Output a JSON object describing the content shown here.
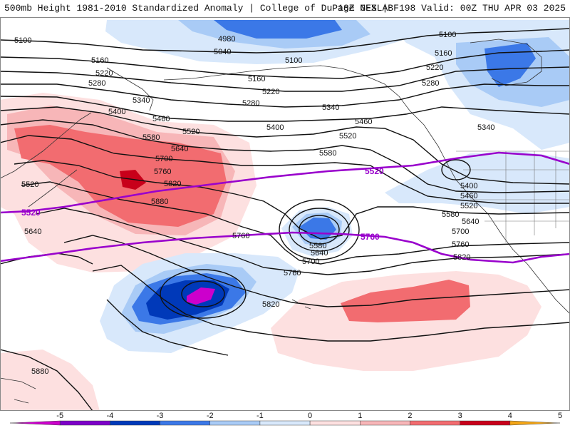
{
  "header": {
    "title": "500mb Height 1981-2010 Standardized Anomaly | College of DuPage NEXLAB",
    "run_info": "18Z GFS | F198 Valid: 00Z THU APR 03 2025"
  },
  "colors": {
    "anom_neg5": "#cc00cc",
    "anom_neg4": "#7d00c8",
    "anom_neg3": "#0039b9",
    "anom_neg2": "#3b78e7",
    "anom_neg1": "#a9cbf6",
    "anom_neg0": "#d8e8fb",
    "anom_pos0": "#fde0e0",
    "anom_pos1": "#f7b6b8",
    "anom_pos2": "#f26c70",
    "anom_pos3": "#c8001a",
    "anom_pos4": "#f3a516",
    "purple_line": "#9900cc",
    "contour": "#111111",
    "coast": "#333333"
  },
  "contour_labels": {
    "l5100a": "5100",
    "l5160a": "5160",
    "l5220a": "5220",
    "l5280a": "5280",
    "l5340a": "5340",
    "l5400a": "5400",
    "l5460a": "5460",
    "l5520a": "5520",
    "l5580a": "5580",
    "l5640a": "5640",
    "l5700a": "5700",
    "l5760a": "5760",
    "l5820a": "5820",
    "l5880a": "5880",
    "l4980": "4980",
    "l5040": "5040",
    "l5100b": "5100",
    "l5160b": "5160",
    "l5220b": "5220",
    "l5280b": "5280",
    "l5340b": "5340",
    "l5400b": "5400",
    "l5460b": "5460",
    "l5520b": "5520",
    "l5580b": "5580",
    "l5100c": "5100",
    "l5160c": "5160",
    "l5220c": "5220",
    "l5280c": "5280",
    "l5340c": "5340",
    "l5400c": "5400",
    "l5460c": "5460",
    "l5520c": "5520",
    "l5580c": "5580",
    "l5640c": "5640",
    "l5700c": "5700",
    "l5760c": "5760",
    "l5820c": "5820",
    "l5520w": "5520",
    "l5640w": "5640",
    "l5580low": "5580",
    "l5640low": "5640",
    "l5700low": "5700",
    "l5760low": "5760",
    "l5820s": "5820",
    "l5880sw": "5880"
  },
  "purple_labels": {
    "p5520w": "5520",
    "p5520e": "5520",
    "p5760": "5760"
  },
  "legend": {
    "ticks": [
      "-5",
      "-4",
      "-3",
      "-2",
      "-1",
      "0",
      "1",
      "2",
      "3",
      "4",
      "5"
    ]
  }
}
